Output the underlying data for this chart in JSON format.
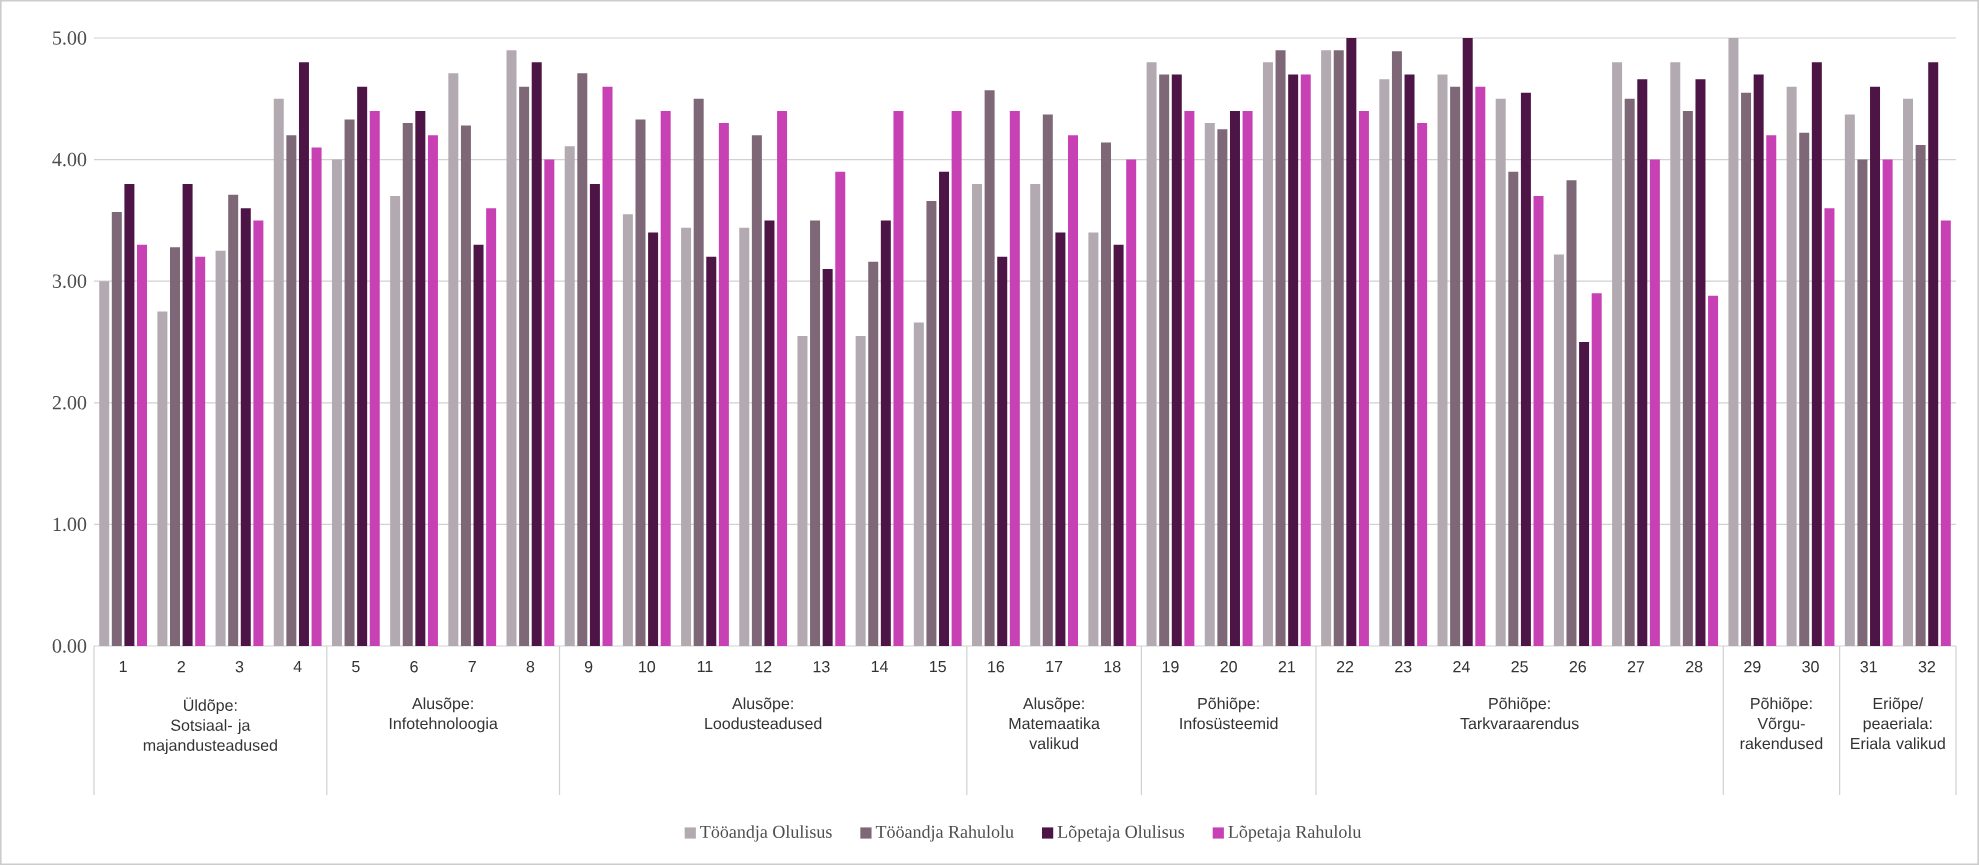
{
  "chart_data": {
    "type": "bar",
    "categories": [
      "1",
      "2",
      "3",
      "4",
      "5",
      "6",
      "7",
      "8",
      "9",
      "10",
      "11",
      "12",
      "13",
      "14",
      "15",
      "16",
      "17",
      "18",
      "19",
      "20",
      "21",
      "22",
      "23",
      "24",
      "25",
      "26",
      "27",
      "28",
      "29",
      "30",
      "31",
      "32"
    ],
    "series": [
      {
        "name": "Tööandja Olulisus",
        "color": "#b3a9b0",
        "values": [
          3.0,
          2.75,
          3.25,
          4.5,
          4.0,
          3.7,
          4.71,
          4.9,
          4.11,
          3.55,
          3.44,
          3.44,
          2.55,
          2.55,
          2.66,
          3.8,
          3.8,
          3.4,
          4.8,
          4.3,
          4.8,
          4.9,
          4.66,
          4.7,
          4.5,
          3.22,
          4.8,
          4.8,
          5.0,
          4.6,
          4.37,
          4.5
        ]
      },
      {
        "name": "Tööandja Rahulolu",
        "color": "#7e6878",
        "values": [
          3.57,
          3.28,
          3.71,
          4.2,
          4.33,
          4.3,
          4.28,
          4.6,
          4.71,
          4.33,
          4.5,
          4.2,
          3.5,
          3.16,
          3.66,
          4.57,
          4.37,
          4.14,
          4.7,
          4.25,
          4.9,
          4.9,
          4.89,
          4.6,
          3.9,
          3.83,
          4.5,
          4.4,
          4.55,
          4.22,
          4.0,
          4.12
        ]
      },
      {
        "name": "Lõpetaja Olulisus",
        "color": "#4d1545",
        "values": [
          3.8,
          3.8,
          3.6,
          4.8,
          4.6,
          4.4,
          3.3,
          4.8,
          3.8,
          3.4,
          3.2,
          3.5,
          3.1,
          3.5,
          3.9,
          3.2,
          3.4,
          3.3,
          4.7,
          4.4,
          4.7,
          5.0,
          4.7,
          5.0,
          4.55,
          2.5,
          4.66,
          4.66,
          4.7,
          4.8,
          4.6,
          4.8
        ]
      },
      {
        "name": "Lõpetaja Rahulolu",
        "color": "#c841b4",
        "values": [
          3.3,
          3.2,
          3.5,
          4.1,
          4.4,
          4.2,
          3.6,
          4.0,
          4.6,
          4.4,
          4.3,
          4.4,
          3.9,
          4.4,
          4.4,
          4.4,
          4.2,
          4.0,
          4.4,
          4.4,
          4.7,
          4.4,
          4.3,
          4.6,
          3.7,
          2.9,
          4.0,
          2.88,
          4.2,
          3.6,
          4.0,
          3.5
        ]
      }
    ],
    "ylim": [
      0,
      5
    ],
    "yticks": [
      {
        "value": 0,
        "label": "0.00"
      },
      {
        "value": 1,
        "label": "1.00"
      },
      {
        "value": 2,
        "label": "2.00"
      },
      {
        "value": 3,
        "label": "3.00"
      },
      {
        "value": 4,
        "label": "4.00"
      },
      {
        "value": 5,
        "label": "5.00"
      }
    ],
    "grid": "y",
    "legend": "bottom",
    "annotations": [
      "Üldõpe: Sotsiaal- ja majandusteadused",
      "Alusõpe: Infotehnoloogia",
      "Alusõpe: Loodusteadused",
      "Alusõpe: Matemaatika valikud",
      "Põhiõpe: Infosüsteemid",
      "Põhiõpe: Tarkvaraarendus",
      "Põhiõpe: Võrgu-rakendused",
      "Eriõpe/ peaeriala: Eriala valikud"
    ]
  }
}
